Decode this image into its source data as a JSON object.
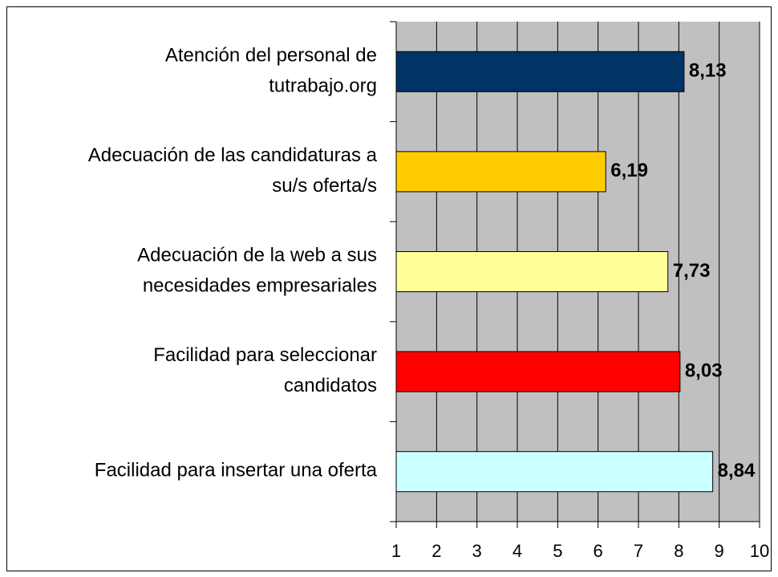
{
  "chart_data": {
    "type": "barh",
    "categories": [
      [
        "Atención del personal de",
        "tutrabajo.org"
      ],
      [
        "Adecuación de las candidaturas a",
        "su/s oferta/s"
      ],
      [
        "Adecuación de la web a sus",
        "necesidades empresariales"
      ],
      [
        "Facilidad para seleccionar",
        "candidatos"
      ],
      [
        "Facilidad para insertar una oferta"
      ]
    ],
    "values": [
      8.13,
      6.19,
      7.73,
      8.03,
      8.84
    ],
    "value_labels": [
      "8,13",
      "6,19",
      "7,73",
      "8,03",
      "8,84"
    ],
    "colors": [
      "#003366",
      "#ffcc00",
      "#ffff99",
      "#ff0000",
      "#ccffff"
    ],
    "xlim": [
      1,
      10
    ],
    "xticks": [
      1,
      2,
      3,
      4,
      5,
      6,
      7,
      8,
      9,
      10
    ],
    "grid": true
  }
}
